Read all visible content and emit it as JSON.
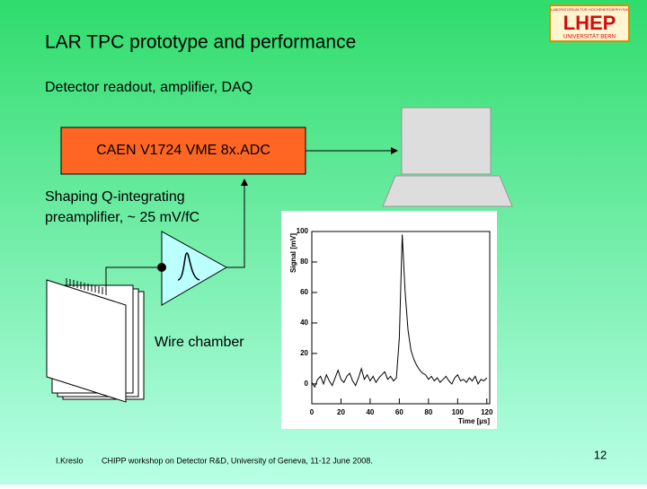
{
  "header": {
    "title": "LAR TPC prototype and performance",
    "subtitle": "Detector readout, amplifier, DAQ",
    "logo": {
      "top": "LABORATORIUM FÜR HOCHENERGIEPHYSIK",
      "name": "LHEP",
      "bottom": "UNIVERSITÄT BERN"
    }
  },
  "diagram": {
    "adc": "CAEN V1724 VME 8x.ADC",
    "preamp": [
      "Shaping Q-integrating",
      "preamplifier, ~ 25 mV/fC"
    ],
    "chamber": "Wire chamber"
  },
  "footer": {
    "author": "I.Kreslo",
    "event": "CHIPP workshop on Detector R&D, University of Geneva, 11-12 June 2008.",
    "page": 12
  },
  "chart_data": {
    "type": "line",
    "xlabel": "Time [µs]",
    "ylabel": "Signal [mV]",
    "x": [
      0,
      2,
      4,
      6,
      8,
      10,
      12,
      14,
      16,
      18,
      20,
      22,
      24,
      26,
      28,
      30,
      32,
      34,
      36,
      38,
      40,
      42,
      44,
      46,
      48,
      50,
      52,
      54,
      56,
      58,
      60,
      62,
      64,
      66,
      68,
      70,
      72,
      74,
      76,
      78,
      80,
      82,
      84,
      86,
      88,
      90,
      92,
      94,
      96,
      98,
      100,
      102,
      104,
      106,
      108,
      110,
      112,
      114,
      116,
      118,
      120
    ],
    "series": [
      {
        "color": "#000000",
        "values": [
          1,
          -2,
          3,
          5,
          0,
          6,
          2,
          -1,
          4,
          9,
          3,
          1,
          5,
          7,
          2,
          -1,
          4,
          10,
          3,
          6,
          2,
          5,
          1,
          4,
          6,
          8,
          3,
          5,
          2,
          4,
          30,
          98,
          60,
          35,
          22,
          16,
          12,
          9,
          7,
          6,
          3,
          5,
          2,
          4,
          1,
          3,
          5,
          2,
          0,
          4,
          6,
          2,
          3,
          1,
          4,
          2,
          5,
          0,
          3,
          2,
          4
        ]
      }
    ],
    "xlim": [
      0,
      122
    ],
    "ylim": [
      -13,
      100
    ],
    "xticks": [
      0,
      20,
      40,
      60,
      80,
      100,
      120
    ],
    "yticks": [
      0,
      20,
      40,
      60,
      80,
      100
    ]
  }
}
